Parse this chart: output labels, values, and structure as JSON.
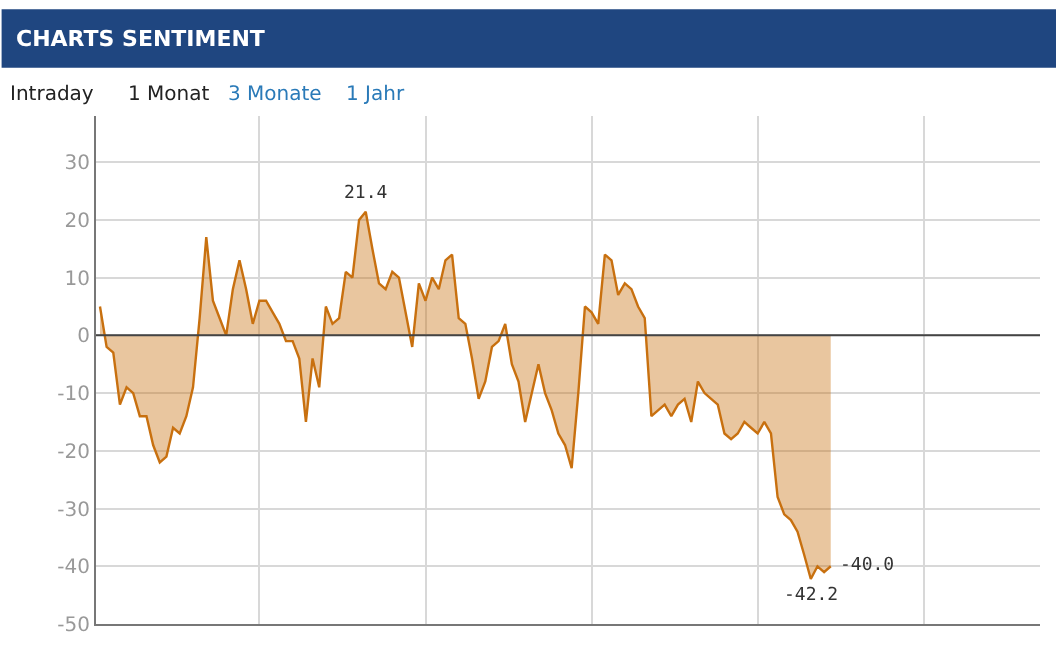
{
  "chart_data": {
    "type": "area",
    "title": "CHARTS SENTIMENT",
    "annotations": [
      "Intraday",
      "1 Monat",
      "3 Monate",
      "1 Jahr",
      {
        "text": "21.4",
        "y": 21.4
      },
      {
        "text": "-42.2",
        "y": -42.2
      },
      "-40.0"
    ],
    "categories": [
      null,
      null,
      null,
      null,
      null,
      null,
      null,
      null,
      null,
      null,
      null,
      null,
      null,
      null,
      null,
      null,
      null,
      null,
      null,
      null,
      null,
      null,
      null,
      null,
      null,
      null,
      null,
      null,
      null,
      null,
      null,
      null,
      null,
      null,
      null,
      null,
      null,
      null,
      null,
      null,
      null,
      null,
      null,
      null,
      null,
      null,
      null,
      null,
      null,
      null,
      null,
      null,
      null,
      null,
      null,
      null,
      null,
      null,
      null,
      null,
      null,
      null,
      null,
      null,
      null,
      null,
      null,
      null,
      null,
      null,
      null,
      null,
      null,
      null,
      null,
      null,
      null,
      null,
      null,
      null,
      null,
      null,
      null,
      null,
      null,
      null,
      null,
      null,
      null,
      null,
      null,
      null,
      null,
      null,
      null,
      null,
      null,
      null,
      null,
      null,
      null,
      null,
      null,
      null,
      null,
      null,
      null,
      null,
      null,
      null,
      null,
      null,
      null,
      null,
      null,
      null,
      null,
      null,
      null,
      null,
      null,
      null,
      null,
      null,
      null,
      null,
      null,
      null,
      null,
      null,
      null,
      null,
      null,
      null,
      null,
      null,
      null,
      null,
      null,
      null,
      null,
      null
    ],
    "series": [
      {
        "color": "#c8700f",
        "values": [
          5,
          -2,
          -3,
          -12,
          -9,
          -10,
          -14,
          -14,
          -19,
          -22,
          -21,
          -16,
          -17,
          -14,
          -9,
          3,
          17,
          6,
          3,
          0,
          8,
          13,
          8,
          2,
          6,
          6,
          4,
          2,
          -1,
          -1,
          -4,
          -15,
          -4,
          -9,
          5,
          2,
          3,
          11,
          10,
          20,
          21.4,
          15,
          9,
          8,
          11,
          10,
          4,
          -2,
          9,
          6,
          10,
          8,
          13,
          14,
          3,
          2,
          -4,
          -11,
          -8,
          -2,
          -1,
          2,
          -5,
          -8,
          -15,
          -10,
          -5,
          -10,
          -13,
          -17,
          -19,
          -23,
          -10,
          5,
          4,
          2,
          14,
          13,
          7,
          9,
          8,
          5,
          3,
          -14,
          -13,
          -12,
          -14,
          -12,
          -11,
          -15,
          -8,
          -10,
          -11,
          -12,
          -17,
          -18,
          -17,
          -15,
          -16,
          -17,
          -15,
          -17,
          -28,
          -31,
          -32,
          -34,
          -38,
          -42.2,
          -40,
          -41,
          -40.0,
          null,
          null,
          null,
          null,
          null,
          null,
          null,
          null,
          null,
          null,
          null,
          null,
          null,
          null,
          null,
          null,
          null,
          null,
          null,
          null,
          null,
          null,
          null,
          null,
          null,
          null,
          null,
          null,
          null,
          null,
          null
        ]
      }
    ],
    "ylim": [
      -50,
      38
    ],
    "yticks": [
      30,
      20,
      10,
      0,
      -10,
      -20,
      -30,
      -40,
      -50
    ],
    "ref_lines": [
      {
        "axis": "y",
        "value": 0,
        "color": "#444444"
      }
    ],
    "grid": true,
    "marker": "none",
    "line_style": "solid"
  }
}
